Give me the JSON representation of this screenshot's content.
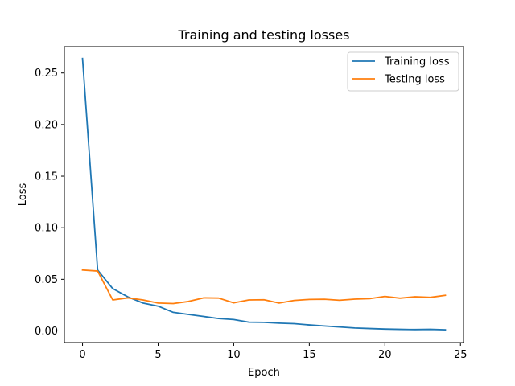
{
  "chart_data": {
    "type": "line",
    "title": "Training and testing losses",
    "xlabel": "Epoch",
    "ylabel": "Loss",
    "xlim": [
      -1.2,
      25.2
    ],
    "ylim": [
      -0.0113,
      0.2755
    ],
    "xticks": [
      0,
      5,
      10,
      15,
      20,
      25
    ],
    "xtick_labels": [
      "0",
      "5",
      "10",
      "15",
      "20",
      "25"
    ],
    "yticks": [
      0.0,
      0.05,
      0.1,
      0.15,
      0.2,
      0.25
    ],
    "ytick_labels": [
      "0.00",
      "0.05",
      "0.10",
      "0.15",
      "0.20",
      "0.25"
    ],
    "grid": false,
    "legend_position": "top-right",
    "x": [
      0,
      1,
      2,
      3,
      4,
      5,
      6,
      7,
      8,
      9,
      10,
      11,
      12,
      13,
      14,
      15,
      16,
      17,
      18,
      19,
      20,
      21,
      22,
      23,
      24
    ],
    "series": [
      {
        "name": "Training loss",
        "color": "#1f77b4",
        "values": [
          0.264,
          0.059,
          0.041,
          0.033,
          0.027,
          0.024,
          0.018,
          0.016,
          0.014,
          0.012,
          0.011,
          0.0085,
          0.0083,
          0.0075,
          0.007,
          0.0058,
          0.0048,
          0.0038,
          0.0028,
          0.0023,
          0.0018,
          0.0015,
          0.0013,
          0.0015,
          0.0011
        ]
      },
      {
        "name": "Testing loss",
        "color": "#ff7f0e",
        "values": [
          0.059,
          0.058,
          0.03,
          0.032,
          0.03,
          0.027,
          0.0265,
          0.0285,
          0.032,
          0.0318,
          0.0272,
          0.03,
          0.0302,
          0.027,
          0.0295,
          0.0305,
          0.0307,
          0.0297,
          0.0308,
          0.0313,
          0.0334,
          0.0317,
          0.0331,
          0.0325,
          0.0345
        ]
      }
    ]
  }
}
